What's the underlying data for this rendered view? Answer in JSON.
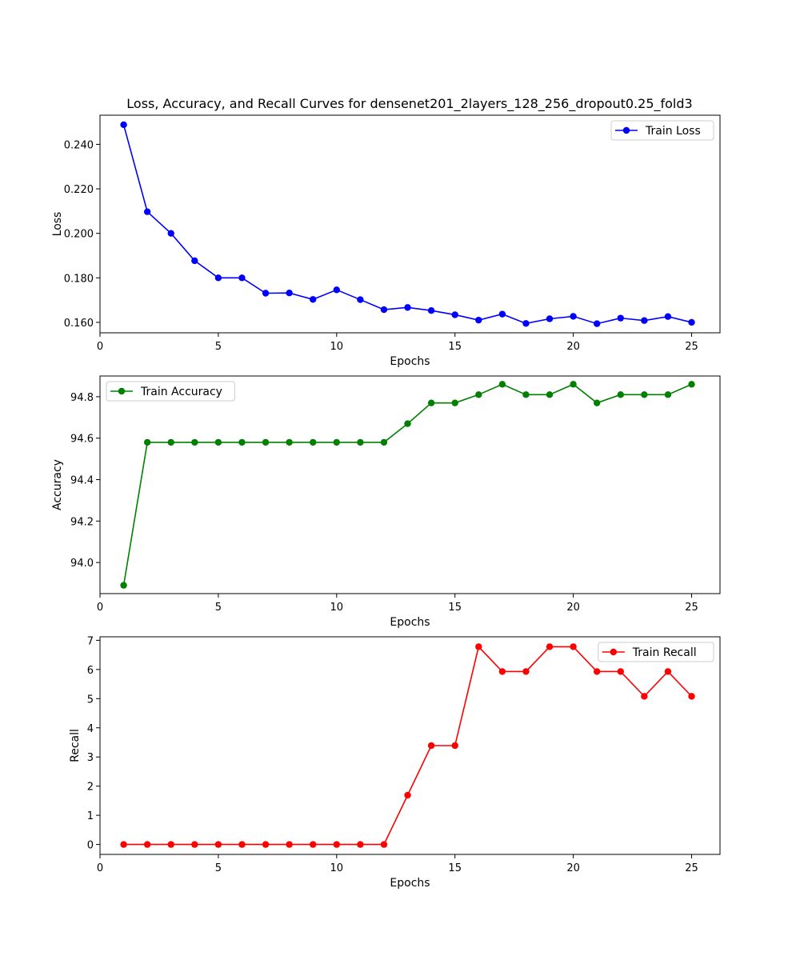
{
  "chart_data": {
    "title": "Loss, Accuracy, and Recall Curves for densenet201_2layers_128_256_dropout0.25_fold3",
    "x": [
      1,
      2,
      3,
      4,
      5,
      6,
      7,
      8,
      9,
      10,
      11,
      12,
      13,
      14,
      15,
      16,
      17,
      18,
      19,
      20,
      21,
      22,
      23,
      24,
      25
    ],
    "subplots": [
      {
        "type": "line",
        "ylabel": "Loss",
        "xlabel": "Epochs",
        "xlim": [
          0,
          26.2
        ],
        "ylim": [
          0.1553,
          0.2531
        ],
        "xticks": [
          0,
          5,
          10,
          15,
          20,
          25
        ],
        "yticks": [
          0.16,
          0.18,
          0.2,
          0.22,
          0.24
        ],
        "ytick_labels": [
          "0.160",
          "0.180",
          "0.200",
          "0.220",
          "0.240"
        ],
        "legend_position": "upper right",
        "series": [
          {
            "name": "Train Loss",
            "color": "#0000ff",
            "marker": "circle",
            "values": [
              0.2488,
              0.2097,
              0.2,
              0.1877,
              0.18,
              0.18,
              0.1731,
              0.1732,
              0.1703,
              0.1746,
              0.1702,
              0.1657,
              0.1667,
              0.1653,
              0.1634,
              0.161,
              0.1637,
              0.1595,
              0.1616,
              0.1627,
              0.1594,
              0.1619,
              0.1608,
              0.1626,
              0.16
            ]
          }
        ]
      },
      {
        "type": "line",
        "ylabel": "Accuracy",
        "xlabel": "Epochs",
        "xlim": [
          0,
          26.2
        ],
        "ylim": [
          93.85,
          94.9
        ],
        "xticks": [
          0,
          5,
          10,
          15,
          20,
          25
        ],
        "yticks": [
          94.0,
          94.2,
          94.4,
          94.6,
          94.8
        ],
        "ytick_labels": [
          "94.0",
          "94.2",
          "94.4",
          "94.6",
          "94.8"
        ],
        "legend_position": "upper left",
        "series": [
          {
            "name": "Train Accuracy",
            "color": "#008000",
            "marker": "circle",
            "values": [
              93.89,
              94.58,
              94.58,
              94.58,
              94.58,
              94.58,
              94.58,
              94.58,
              94.58,
              94.58,
              94.58,
              94.58,
              94.67,
              94.77,
              94.77,
              94.81,
              94.86,
              94.81,
              94.81,
              94.86,
              94.77,
              94.81,
              94.81,
              94.81,
              94.86
            ]
          }
        ]
      },
      {
        "type": "line",
        "ylabel": "Recall",
        "xlabel": "Epochs",
        "xlim": [
          0,
          26.2
        ],
        "ylim": [
          -0.34,
          7.12
        ],
        "xticks": [
          0,
          5,
          10,
          15,
          20,
          25
        ],
        "yticks": [
          0,
          1,
          2,
          3,
          4,
          5,
          6,
          7
        ],
        "ytick_labels": [
          "0",
          "1",
          "2",
          "3",
          "4",
          "5",
          "6",
          "7"
        ],
        "legend_position": "upper right",
        "series": [
          {
            "name": "Train Recall",
            "color": "#ff0000",
            "marker": "circle",
            "values": [
              0,
              0,
              0,
              0,
              0,
              0,
              0,
              0,
              0,
              0,
              0,
              0,
              1.69,
              3.39,
              3.39,
              6.78,
              5.93,
              5.93,
              6.78,
              6.78,
              5.93,
              5.93,
              5.08,
              5.93,
              5.08
            ]
          }
        ]
      }
    ]
  }
}
